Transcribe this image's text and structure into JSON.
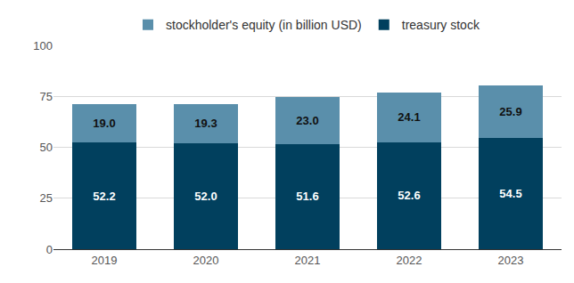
{
  "chart_data": {
    "type": "bar",
    "stacked": true,
    "data_labels": true,
    "grid": true,
    "legend": "top",
    "categories": [
      "2019",
      "2020",
      "2021",
      "2022",
      "2023"
    ],
    "series": [
      {
        "name": "treasury stock",
        "color": "#01405e",
        "values": [
          52.2,
          52.0,
          51.6,
          52.6,
          54.5
        ],
        "value_labels": [
          "52.2",
          "52.0",
          "51.6",
          "52.6",
          "54.5"
        ]
      },
      {
        "name": "stockholder's equity (in billion USD)",
        "color": "#5a8fab",
        "values": [
          19.0,
          19.3,
          23.0,
          24.1,
          25.9
        ],
        "value_labels": [
          "19.0",
          "19.3",
          "23.0",
          "24.1",
          "25.9"
        ]
      }
    ],
    "ylim": [
      0,
      100
    ],
    "yticks": [
      0,
      25,
      50,
      75,
      100
    ]
  }
}
